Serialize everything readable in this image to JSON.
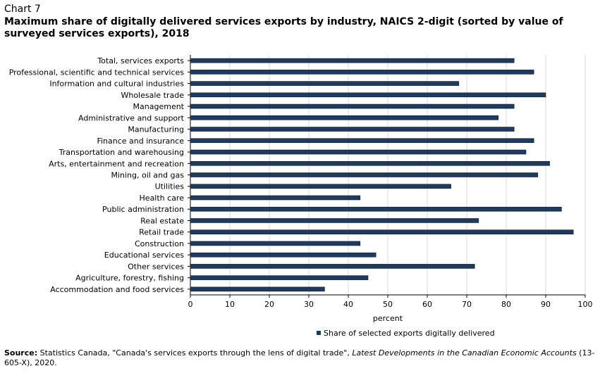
{
  "chart_label": "Chart 7",
  "title": "Maximum share of digitally  delivered services exports by industry, NAICS 2-digit (sorted by value of surveyed services exports), 2018",
  "chart_data": {
    "type": "bar",
    "orientation": "horizontal",
    "categories": [
      "Total, services exports",
      "Professional, scientific and technical services",
      "Information and cultural industries",
      "Wholesale trade",
      "Management",
      "Administrative and support",
      "Manufacturing",
      "Finance and insurance",
      "Transportation and warehousing",
      "Arts, entertainment and recreation",
      "Mining, oil and gas",
      "Utilities",
      "Health care",
      "Public administration",
      "Real estate",
      "Retail trade",
      "Construction",
      "Educational services",
      "Other services",
      "Agriculture, forestry, fishing",
      "Accommodation and food services"
    ],
    "series": [
      {
        "name": "Share of selected exports digitally delivered",
        "values": [
          82,
          87,
          68,
          90,
          82,
          78,
          82,
          87,
          85,
          91,
          88,
          66,
          43,
          94,
          73,
          97,
          43,
          47,
          72,
          45,
          34
        ]
      }
    ],
    "xlabel": "percent",
    "xlim": [
      0,
      100
    ],
    "xticks": [
      0,
      10,
      20,
      30,
      40,
      50,
      60,
      70,
      80,
      90,
      100
    ],
    "grid": "vertical",
    "legend": "bottom",
    "bar_color": "#1f3a5f",
    "grid_color": "#d9d9d9"
  },
  "source": {
    "label": "Source:",
    "text": " Statistics Canada, \"Canada's services exports through the lens of digital trade\", ",
    "italic": "Latest Developments in the Canadian Economic Accounts",
    "tail": " (13-605-X), 2020."
  }
}
